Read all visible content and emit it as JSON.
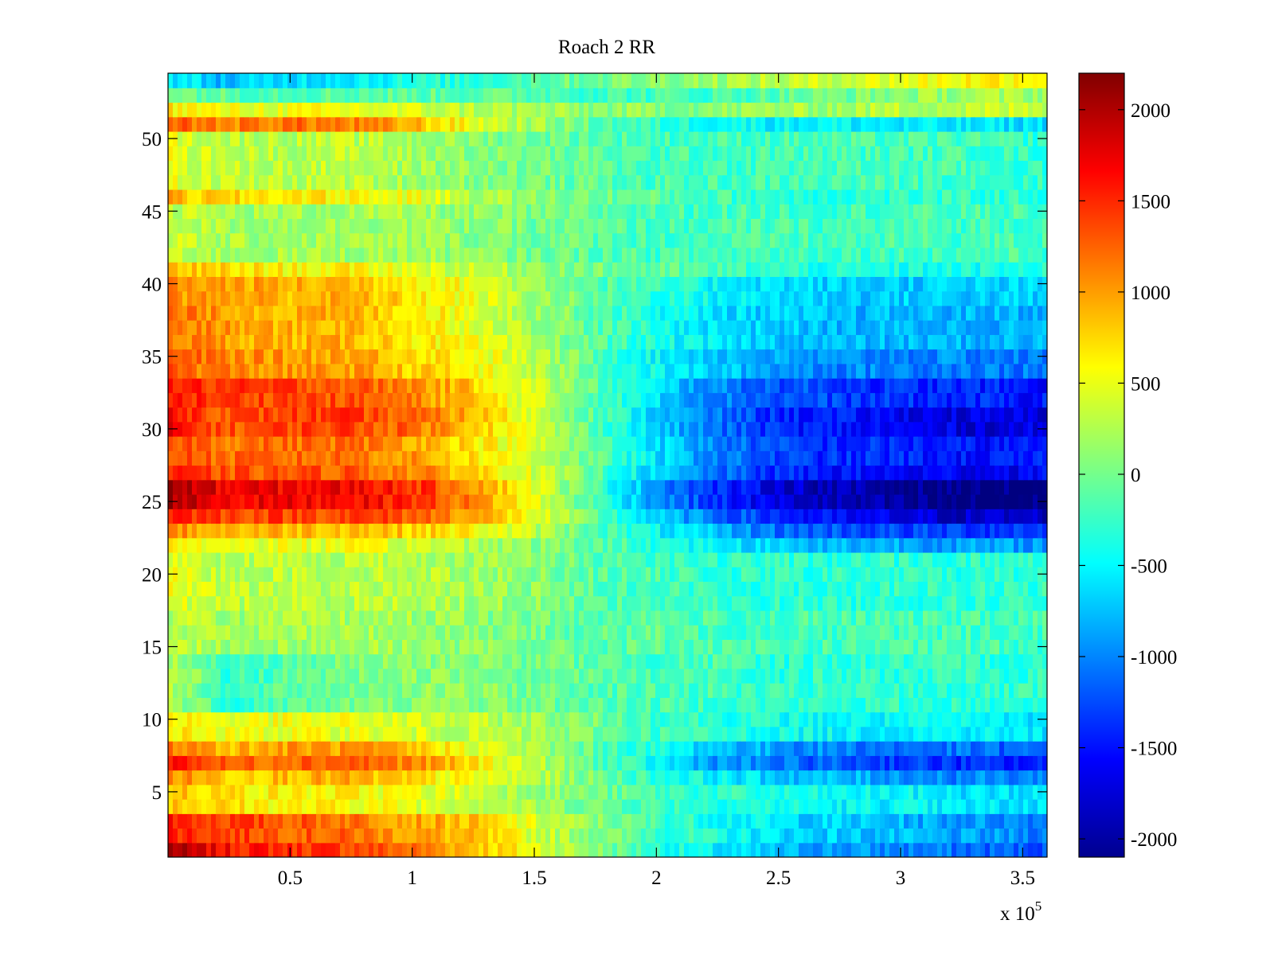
{
  "chart_data": {
    "type": "heatmap",
    "title": "Roach 2 RR",
    "xlabel": "",
    "ylabel": "",
    "x_exponent_label": "x 10",
    "x_exponent_power": "5",
    "xlim": [
      0,
      3.6
    ],
    "ylim": [
      0.5,
      54.5
    ],
    "rows": 54,
    "x_ticks": [
      0.5,
      1,
      1.5,
      2,
      2.5,
      3,
      3.5
    ],
    "x_tick_labels": [
      "0.5",
      "1",
      "1.5",
      "2",
      "2.5",
      "3",
      "3.5"
    ],
    "y_ticks": [
      5,
      10,
      15,
      20,
      25,
      30,
      35,
      40,
      45,
      50
    ],
    "y_tick_labels": [
      "5",
      "10",
      "15",
      "20",
      "25",
      "30",
      "35",
      "40",
      "45",
      "50"
    ],
    "colorbar": {
      "colormap": "jet",
      "range": [
        -2100,
        2200
      ],
      "ticks": [
        -2000,
        -1500,
        -1000,
        -500,
        0,
        500,
        1000,
        1500,
        2000
      ],
      "tick_labels": [
        "-2000",
        "-1500",
        "-1000",
        "-500",
        "0",
        "500",
        "1000",
        "1500",
        "2000"
      ]
    },
    "grid": false,
    "x_samples": [
      0,
      0.1,
      0.25,
      0.5,
      0.75,
      1.0,
      1.25,
      1.5,
      1.75,
      2.0,
      2.25,
      2.5,
      2.75,
      3.0,
      3.25,
      3.6
    ],
    "row_profiles": [
      {
        "rows": [
          1,
          1
        ],
        "values": [
          2100,
          1800,
          1600,
          1500,
          1400,
          1200,
          900,
          500,
          100,
          -300,
          -600,
          -800,
          -900,
          -1000,
          -1100,
          -1200
        ]
      },
      {
        "rows": [
          2,
          3
        ],
        "values": [
          1600,
          1500,
          1400,
          1300,
          1200,
          1000,
          800,
          400,
          100,
          -200,
          -400,
          -600,
          -700,
          -800,
          -900,
          -1000
        ]
      },
      {
        "rows": [
          4,
          5
        ],
        "values": [
          900,
          800,
          700,
          600,
          600,
          500,
          400,
          200,
          0,
          -200,
          -300,
          -400,
          -500,
          -500,
          -600,
          -600
        ]
      },
      {
        "rows": [
          6,
          6
        ],
        "values": [
          1100,
          1000,
          800,
          900,
          900,
          700,
          500,
          300,
          0,
          -300,
          -500,
          -700,
          -800,
          -900,
          -1000,
          -1000
        ]
      },
      {
        "rows": [
          7,
          7
        ],
        "values": [
          1700,
          1500,
          1200,
          1300,
          1300,
          1100,
          700,
          300,
          -100,
          -500,
          -900,
          -1100,
          -1200,
          -1300,
          -1400,
          -1500
        ]
      },
      {
        "rows": [
          8,
          8
        ],
        "values": [
          1200,
          1100,
          900,
          1000,
          1000,
          800,
          500,
          200,
          -100,
          -400,
          -700,
          -900,
          -1000,
          -1100,
          -1100,
          -1200
        ]
      },
      {
        "rows": [
          9,
          10
        ],
        "values": [
          700,
          600,
          500,
          500,
          500,
          400,
          300,
          200,
          0,
          -200,
          -300,
          -400,
          -500,
          -500,
          -500,
          -600
        ]
      },
      {
        "rows": [
          11,
          14
        ],
        "values": [
          200,
          100,
          -300,
          -100,
          0,
          100,
          100,
          0,
          -100,
          -200,
          -200,
          -300,
          -300,
          -300,
          -300,
          -300
        ]
      },
      {
        "rows": [
          15,
          17
        ],
        "values": [
          300,
          300,
          200,
          200,
          200,
          200,
          100,
          0,
          -100,
          -100,
          -200,
          -200,
          -200,
          -200,
          -200,
          -200
        ]
      },
      {
        "rows": [
          18,
          21
        ],
        "values": [
          500,
          400,
          300,
          300,
          300,
          300,
          200,
          100,
          -100,
          -200,
          -300,
          -300,
          -300,
          -300,
          -300,
          -300
        ]
      },
      {
        "rows": [
          22,
          22
        ],
        "values": [
          700,
          600,
          500,
          500,
          500,
          400,
          300,
          100,
          -100,
          -300,
          -500,
          -700,
          -800,
          -800,
          -900,
          -900
        ]
      },
      {
        "rows": [
          23,
          23
        ],
        "values": [
          1100,
          1000,
          900,
          900,
          900,
          800,
          600,
          300,
          -100,
          -500,
          -800,
          -1100,
          -1200,
          -1300,
          -1300,
          -1300
        ]
      },
      {
        "rows": [
          24,
          24
        ],
        "values": [
          1600,
          1500,
          1400,
          1400,
          1400,
          1300,
          1000,
          500,
          -100,
          -700,
          -1100,
          -1400,
          -1600,
          -1700,
          -1800,
          -1800
        ]
      },
      {
        "rows": [
          25,
          26
        ],
        "values": [
          2100,
          1900,
          1700,
          1700,
          1700,
          1500,
          1100,
          500,
          -200,
          -900,
          -1400,
          -1700,
          -1900,
          -2000,
          -2100,
          -2100
        ]
      },
      {
        "rows": [
          27,
          27
        ],
        "values": [
          1500,
          1400,
          1300,
          1300,
          1300,
          1100,
          800,
          400,
          -100,
          -700,
          -1100,
          -1400,
          -1500,
          -1600,
          -1600,
          -1600
        ]
      },
      {
        "rows": [
          28,
          29
        ],
        "values": [
          1400,
          1300,
          1200,
          1200,
          1200,
          1000,
          700,
          400,
          -100,
          -600,
          -1000,
          -1300,
          -1400,
          -1400,
          -1500,
          -1500
        ]
      },
      {
        "rows": [
          30,
          31
        ],
        "values": [
          1700,
          1500,
          1300,
          1400,
          1400,
          1200,
          900,
          400,
          -100,
          -700,
          -1100,
          -1400,
          -1500,
          -1600,
          -1700,
          -1700
        ]
      },
      {
        "rows": [
          32,
          33
        ],
        "values": [
          1600,
          1500,
          1400,
          1400,
          1300,
          1100,
          800,
          400,
          -100,
          -600,
          -1000,
          -1200,
          -1300,
          -1400,
          -1400,
          -1500
        ]
      },
      {
        "rows": [
          34,
          35
        ],
        "values": [
          1300,
          1200,
          1100,
          1000,
          1000,
          800,
          600,
          300,
          -100,
          -500,
          -700,
          -900,
          -1000,
          -1000,
          -1000,
          -1100
        ]
      },
      {
        "rows": [
          36,
          38
        ],
        "values": [
          1200,
          1100,
          1000,
          900,
          900,
          700,
          500,
          200,
          -100,
          -400,
          -600,
          -700,
          -800,
          -800,
          -800,
          -800
        ]
      },
      {
        "rows": [
          39,
          40
        ],
        "values": [
          1100,
          1000,
          1000,
          900,
          900,
          700,
          500,
          200,
          -100,
          -300,
          -500,
          -600,
          -700,
          -700,
          -700,
          -700
        ]
      },
      {
        "rows": [
          41,
          41
        ],
        "values": [
          900,
          800,
          700,
          600,
          600,
          500,
          300,
          200,
          0,
          -100,
          -200,
          -300,
          -400,
          -400,
          -400,
          -400
        ]
      },
      {
        "rows": [
          42,
          45
        ],
        "values": [
          400,
          300,
          200,
          200,
          200,
          200,
          100,
          0,
          -100,
          -200,
          -200,
          -200,
          -200,
          -200,
          -200,
          -200
        ]
      },
      {
        "rows": [
          46,
          46
        ],
        "values": [
          900,
          800,
          700,
          700,
          600,
          500,
          300,
          100,
          0,
          -100,
          -200,
          -300,
          -300,
          -300,
          -300,
          -300
        ]
      },
      {
        "rows": [
          47,
          50
        ],
        "values": [
          500,
          400,
          300,
          300,
          300,
          200,
          100,
          0,
          -100,
          -200,
          -200,
          -200,
          -200,
          -200,
          -200,
          -300
        ]
      },
      {
        "rows": [
          51,
          51
        ],
        "values": [
          1300,
          1200,
          1100,
          1200,
          1100,
          900,
          500,
          200,
          -100,
          -300,
          -400,
          -500,
          -500,
          -600,
          -600,
          -600
        ]
      },
      {
        "rows": [
          52,
          52
        ],
        "values": [
          700,
          600,
          500,
          500,
          500,
          400,
          300,
          200,
          100,
          100,
          100,
          200,
          200,
          300,
          300,
          400
        ]
      },
      {
        "rows": [
          53,
          53
        ],
        "values": [
          100,
          0,
          -100,
          -100,
          -100,
          -100,
          -100,
          -100,
          -200,
          -200,
          -200,
          -100,
          0,
          100,
          200,
          200
        ]
      },
      {
        "rows": [
          54,
          54
        ],
        "values": [
          -500,
          -600,
          -800,
          -600,
          -500,
          -400,
          -300,
          -100,
          0,
          100,
          200,
          300,
          400,
          500,
          600,
          700
        ]
      }
    ]
  }
}
